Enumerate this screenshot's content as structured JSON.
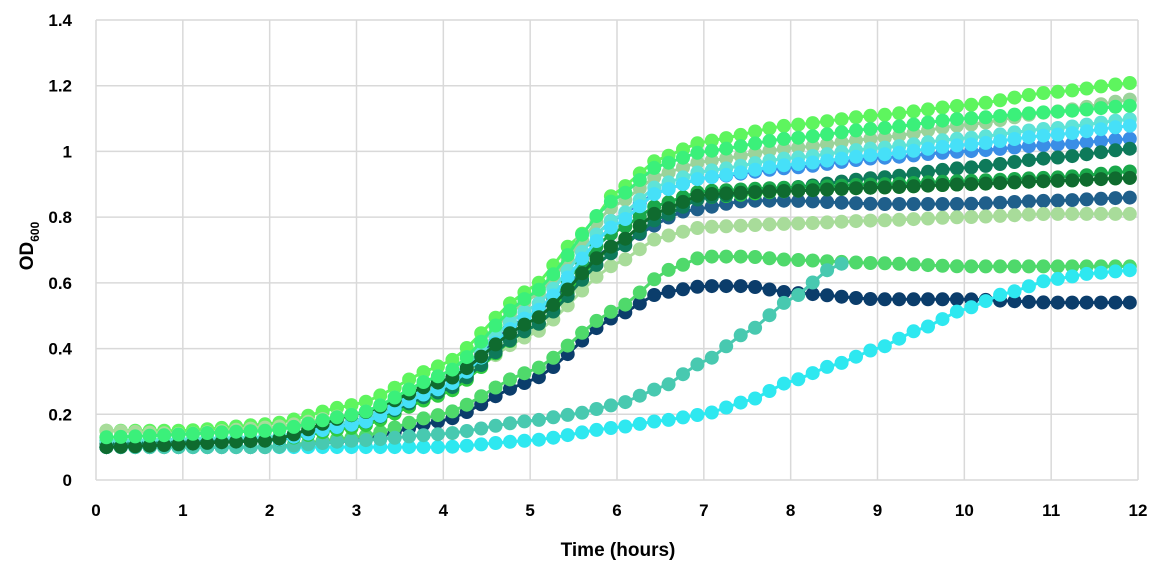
{
  "chart_data": {
    "type": "scatter",
    "title": "",
    "xlabel": "Time (hours)",
    "ylabel": "OD",
    "ylabel_subscript": "600",
    "xlim": [
      0,
      12
    ],
    "ylim": [
      0,
      1.4
    ],
    "xticks": [
      0,
      1,
      2,
      3,
      4,
      5,
      6,
      7,
      8,
      9,
      10,
      11,
      12
    ],
    "yticks": [
      0,
      0.2,
      0.4,
      0.6,
      0.8,
      1,
      1.2,
      1.4
    ],
    "ytick_labels": [
      "0",
      "0.2",
      "0.4",
      "0.6",
      "0.8",
      "1",
      "1.2",
      "1.4"
    ],
    "grid": true,
    "legend": "none",
    "x_start": 0.12,
    "x_step": 0.166,
    "series": [
      {
        "color": "#1f5f8b",
        "points": [
          [
            0.12,
            0.12
          ],
          [
            2,
            0.12
          ],
          [
            3,
            0.18
          ],
          [
            4,
            0.3
          ],
          [
            5,
            0.5
          ],
          [
            6,
            0.72
          ],
          [
            6.8,
            0.82
          ],
          [
            7.5,
            0.85
          ],
          [
            8,
            0.85
          ],
          [
            9,
            0.84
          ],
          [
            10,
            0.84
          ],
          [
            11,
            0.85
          ],
          [
            12,
            0.86
          ]
        ]
      },
      {
        "color": "#0b3d6b",
        "points": [
          [
            0.12,
            0.1
          ],
          [
            2,
            0.1
          ],
          [
            3,
            0.12
          ],
          [
            4,
            0.18
          ],
          [
            5,
            0.3
          ],
          [
            6,
            0.5
          ],
          [
            6.5,
            0.57
          ],
          [
            7,
            0.59
          ],
          [
            7.5,
            0.59
          ],
          [
            8,
            0.57
          ],
          [
            9,
            0.55
          ],
          [
            10,
            0.55
          ],
          [
            11,
            0.54
          ],
          [
            12,
            0.54
          ]
        ]
      },
      {
        "color": "#4fd96b",
        "points": [
          [
            0.12,
            0.1
          ],
          [
            2,
            0.1
          ],
          [
            3,
            0.13
          ],
          [
            4,
            0.2
          ],
          [
            5,
            0.33
          ],
          [
            6,
            0.52
          ],
          [
            6.6,
            0.64
          ],
          [
            7,
            0.68
          ],
          [
            7.5,
            0.68
          ],
          [
            8,
            0.67
          ],
          [
            9,
            0.66
          ],
          [
            10,
            0.65
          ],
          [
            11,
            0.65
          ],
          [
            12,
            0.65
          ]
        ]
      },
      {
        "color": "#2ee8f0",
        "points": [
          [
            0.12,
            0.1
          ],
          [
            2,
            0.1
          ],
          [
            3,
            0.1
          ],
          [
            4,
            0.1
          ],
          [
            5,
            0.12
          ],
          [
            6,
            0.16
          ],
          [
            6.5,
            0.18
          ],
          [
            7,
            0.2
          ],
          [
            7.5,
            0.24
          ],
          [
            8,
            0.3
          ],
          [
            8.5,
            0.35
          ],
          [
            9,
            0.4
          ],
          [
            9.5,
            0.46
          ],
          [
            10,
            0.52
          ],
          [
            10.5,
            0.57
          ],
          [
            11,
            0.61
          ],
          [
            11.5,
            0.63
          ],
          [
            12,
            0.64
          ]
        ]
      },
      {
        "color": "#48c9b0",
        "points": [
          [
            0.12,
            0.1
          ],
          [
            2,
            0.1
          ],
          [
            3,
            0.12
          ],
          [
            4,
            0.14
          ],
          [
            5,
            0.18
          ],
          [
            5.5,
            0.2
          ],
          [
            6,
            0.23
          ],
          [
            6.5,
            0.28
          ],
          [
            7,
            0.36
          ],
          [
            7.5,
            0.45
          ],
          [
            8,
            0.55
          ],
          [
            8.5,
            0.65
          ],
          [
            8.7,
            0.67
          ]
        ]
      },
      {
        "color": "#5ef55e",
        "points": [
          [
            0.12,
            0.15
          ],
          [
            1,
            0.15
          ],
          [
            2,
            0.17
          ],
          [
            3,
            0.23
          ],
          [
            4,
            0.35
          ],
          [
            5,
            0.58
          ],
          [
            5.6,
            0.75
          ],
          [
            6,
            0.88
          ],
          [
            6.5,
            0.98
          ],
          [
            7,
            1.03
          ],
          [
            8,
            1.08
          ],
          [
            9,
            1.11
          ],
          [
            10,
            1.14
          ],
          [
            11,
            1.18
          ],
          [
            12,
            1.21
          ]
        ]
      },
      {
        "color": "#a8dc9a",
        "points": [
          [
            0.12,
            0.15
          ],
          [
            1,
            0.14
          ],
          [
            2,
            0.16
          ],
          [
            3,
            0.2
          ],
          [
            4,
            0.28
          ],
          [
            5,
            0.44
          ],
          [
            6,
            0.66
          ],
          [
            6.5,
            0.74
          ],
          [
            7,
            0.77
          ],
          [
            8,
            0.78
          ],
          [
            9,
            0.79
          ],
          [
            10,
            0.8
          ],
          [
            11,
            0.81
          ],
          [
            12,
            0.81
          ]
        ]
      },
      {
        "color": "#2ecc40",
        "points": [
          [
            0.12,
            0.1
          ],
          [
            2,
            0.12
          ],
          [
            3,
            0.16
          ],
          [
            4,
            0.26
          ],
          [
            5,
            0.46
          ],
          [
            6,
            0.72
          ],
          [
            6.5,
            0.82
          ],
          [
            7,
            0.86
          ],
          [
            8,
            0.88
          ],
          [
            9,
            0.89
          ],
          [
            10,
            0.9
          ],
          [
            11,
            0.91
          ],
          [
            12,
            0.92
          ]
        ]
      },
      {
        "color": "#3a8ee6",
        "points": [
          [
            0.12,
            0.1
          ],
          [
            2,
            0.12
          ],
          [
            3,
            0.18
          ],
          [
            4,
            0.3
          ],
          [
            5,
            0.52
          ],
          [
            6,
            0.8
          ],
          [
            6.5,
            0.88
          ],
          [
            7,
            0.92
          ],
          [
            8,
            0.95
          ],
          [
            9,
            0.98
          ],
          [
            10,
            1.0
          ],
          [
            11,
            1.02
          ],
          [
            12,
            1.04
          ]
        ]
      },
      {
        "color": "#0e7a5a",
        "points": [
          [
            0.12,
            0.11
          ],
          [
            2,
            0.12
          ],
          [
            3,
            0.17
          ],
          [
            4,
            0.27
          ],
          [
            5,
            0.46
          ],
          [
            6,
            0.7
          ],
          [
            6.5,
            0.8
          ],
          [
            7,
            0.86
          ],
          [
            8,
            0.89
          ],
          [
            9,
            0.92
          ],
          [
            10,
            0.95
          ],
          [
            11,
            0.98
          ],
          [
            12,
            1.01
          ]
        ]
      },
      {
        "color": "#1aa84a",
        "points": [
          [
            0.12,
            0.1
          ],
          [
            2,
            0.12
          ],
          [
            3,
            0.17
          ],
          [
            4,
            0.28
          ],
          [
            5,
            0.5
          ],
          [
            6,
            0.76
          ],
          [
            6.5,
            0.84
          ],
          [
            7,
            0.88
          ],
          [
            8,
            0.89
          ],
          [
            9,
            0.9
          ],
          [
            10,
            0.91
          ],
          [
            11,
            0.92
          ],
          [
            12,
            0.94
          ]
        ]
      },
      {
        "color": "#9bd39a",
        "points": [
          [
            0.12,
            0.13
          ],
          [
            2,
            0.15
          ],
          [
            3,
            0.2
          ],
          [
            4,
            0.32
          ],
          [
            5,
            0.55
          ],
          [
            6,
            0.84
          ],
          [
            6.5,
            0.93
          ],
          [
            7,
            0.97
          ],
          [
            8,
            1.01
          ],
          [
            9,
            1.04
          ],
          [
            10,
            1.08
          ],
          [
            11,
            1.12
          ],
          [
            12,
            1.16
          ]
        ]
      },
      {
        "color": "#5fe3d7",
        "points": [
          [
            0.12,
            0.12
          ],
          [
            2,
            0.13
          ],
          [
            3,
            0.18
          ],
          [
            4,
            0.3
          ],
          [
            5,
            0.52
          ],
          [
            6,
            0.8
          ],
          [
            6.5,
            0.9
          ],
          [
            7,
            0.94
          ],
          [
            8,
            0.98
          ],
          [
            9,
            1.01
          ],
          [
            10,
            1.04
          ],
          [
            11,
            1.07
          ],
          [
            12,
            1.1
          ]
        ]
      },
      {
        "color": "#46e0f8",
        "points": [
          [
            0.12,
            0.1
          ],
          [
            2,
            0.12
          ],
          [
            3,
            0.17
          ],
          [
            4,
            0.28
          ],
          [
            5,
            0.5
          ],
          [
            6,
            0.78
          ],
          [
            6.5,
            0.88
          ],
          [
            7,
            0.92
          ],
          [
            8,
            0.96
          ],
          [
            9,
            0.99
          ],
          [
            10,
            1.02
          ],
          [
            11,
            1.05
          ],
          [
            12,
            1.08
          ]
        ]
      },
      {
        "color": "#0f6b2f",
        "points": [
          [
            0.12,
            0.1
          ],
          [
            2,
            0.12
          ],
          [
            3,
            0.2
          ],
          [
            4,
            0.3
          ],
          [
            5,
            0.48
          ],
          [
            6,
            0.72
          ],
          [
            6.5,
            0.82
          ],
          [
            7,
            0.87
          ],
          [
            8,
            0.88
          ],
          [
            9,
            0.89
          ],
          [
            10,
            0.9
          ],
          [
            11,
            0.91
          ],
          [
            12,
            0.92
          ]
        ]
      },
      {
        "color": "#3bf07a",
        "points": [
          [
            0.12,
            0.13
          ],
          [
            2,
            0.15
          ],
          [
            3,
            0.2
          ],
          [
            4,
            0.32
          ],
          [
            5,
            0.56
          ],
          [
            6,
            0.86
          ],
          [
            6.5,
            0.96
          ],
          [
            7,
            1.0
          ],
          [
            8,
            1.04
          ],
          [
            9,
            1.07
          ],
          [
            10,
            1.1
          ],
          [
            11,
            1.12
          ],
          [
            12,
            1.14
          ]
        ]
      }
    ]
  }
}
